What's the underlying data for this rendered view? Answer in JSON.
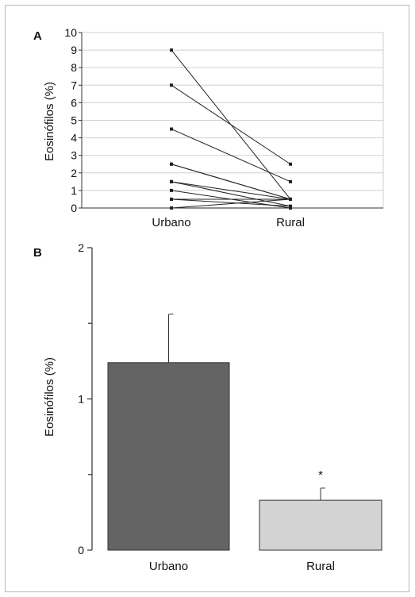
{
  "figure": {
    "colors": {
      "frame": "#b8b8b8",
      "grid": "#d0d0d0",
      "line": "#222222",
      "urban_bar": "#646464",
      "rural_bar": "#d3d3d3",
      "axis": "#333333"
    }
  },
  "chart_data": [
    {
      "panel": "A",
      "type": "line",
      "ylabel": "Eosinófilos (%)",
      "xlabel": "",
      "categories": [
        "Urbano",
        "Rural"
      ],
      "yticks": [
        "0",
        "1",
        "2",
        "3",
        "4",
        "5",
        "6",
        "7",
        "8",
        "9",
        "10"
      ],
      "ylim": [
        0,
        10
      ],
      "grid": true,
      "pairs": [
        [
          9,
          0.5
        ],
        [
          7,
          2.5
        ],
        [
          4.5,
          1.5
        ],
        [
          2.5,
          0.5
        ],
        [
          2.5,
          0.5
        ],
        [
          1.5,
          0.5
        ],
        [
          1.5,
          0.1
        ],
        [
          1,
          0
        ],
        [
          0.5,
          0.5
        ],
        [
          0.5,
          0.1
        ],
        [
          0,
          0.5
        ],
        [
          0,
          0
        ]
      ]
    },
    {
      "panel": "B",
      "type": "bar",
      "ylabel": "Eosinófilos (%)",
      "xlabel": "",
      "categories": [
        "Urbano",
        "Rural"
      ],
      "values": [
        1.24,
        0.33
      ],
      "errors": [
        0.32,
        0.08
      ],
      "yticks": [
        "0",
        "1",
        "2"
      ],
      "ylim": [
        0,
        2
      ],
      "annotations": [
        "",
        "*"
      ],
      "grid": false
    }
  ]
}
